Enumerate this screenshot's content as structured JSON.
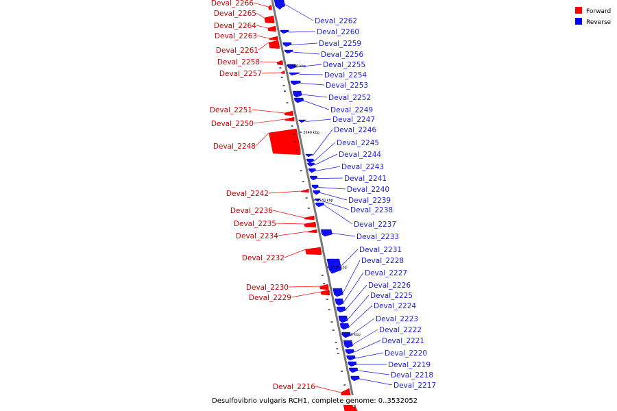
{
  "caption": "Desulfovibrio vulgaris RCH1, complete genome: 0..3532052",
  "legend": [
    {
      "label": "Forward",
      "color": "#ff0000"
    },
    {
      "label": "Reverse",
      "color": "#0000ff"
    }
  ],
  "colors": {
    "forward": "#ff0000",
    "reverse": "#1010ee",
    "forward_label": "#cc0000",
    "reverse_label": "#1a1adf",
    "axis": "#777777"
  },
  "ticks": [
    "2550 kbp",
    "2540 kbp",
    "2530 kbp",
    "2520 kbp",
    "2510 kbp"
  ],
  "forward_genes": [
    "Deval_2266",
    "Deval_2265",
    "Deval_2264",
    "Deval_2263",
    "Deval_2261",
    "Deval_2258",
    "Deval_2257",
    "Deval_2251",
    "Deval_2250",
    "Deval_2248",
    "Deval_2242",
    "Deval_2236",
    "Deval_2235",
    "Deval_2234",
    "Deval_2232",
    "Deval_2230",
    "Deval_2229",
    "Deval_2216"
  ],
  "reverse_genes": [
    "Deval_2262",
    "Deval_2260",
    "Deval_2259",
    "Deval_2256",
    "Deval_2255",
    "Deval_2254",
    "Deval_2253",
    "Deval_2252",
    "Deval_2249",
    "Deval_2247",
    "Deval_2246",
    "Deval_2245",
    "Deval_2244",
    "Deval_2243",
    "Deval_2241",
    "Deval_2240",
    "Deval_2239",
    "Deval_2238",
    "Deval_2237",
    "Deval_2233",
    "Deval_2231",
    "Deval_2228",
    "Deval_2227",
    "Deval_2226",
    "Deval_2225",
    "Deval_2224",
    "Deval_2223",
    "Deval_2222",
    "Deval_2221",
    "Deval_2220",
    "Deval_2219",
    "Deval_2218",
    "Deval_2217"
  ]
}
